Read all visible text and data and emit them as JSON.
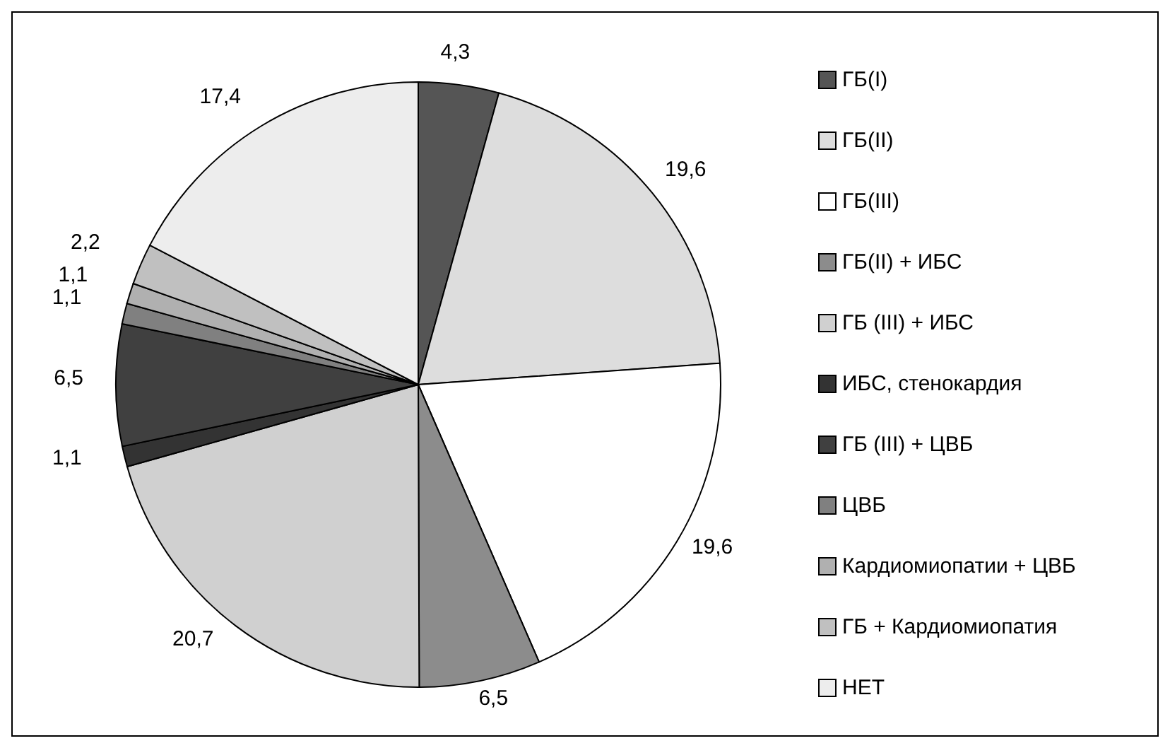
{
  "chart_data": {
    "type": "pie",
    "categories": [
      "ГБ(I)",
      "ГБ(II)",
      "ГБ(III)",
      "ГБ(II) + ИБС",
      "ГБ (III) + ИБС",
      "ИБС, стенокардия",
      "ГБ (III) + ЦВБ",
      "ЦВБ",
      "Кардиомиопатии + ЦВБ",
      "ГБ + Кардиомиопатия",
      "НЕТ"
    ],
    "values": [
      4.3,
      19.6,
      19.6,
      6.5,
      20.7,
      1.1,
      6.5,
      1.1,
      1.1,
      2.2,
      17.4
    ],
    "value_labels": [
      "4,3",
      "19,6",
      "19,6",
      "6,5",
      "20,7",
      "1,1",
      "6,5",
      "1,1",
      "1,1",
      "2,2",
      "17,4"
    ],
    "colors": [
      "#555555",
      "#dddddd",
      "#ffffff",
      "#8c8c8c",
      "#d0d0d0",
      "#333333",
      "#404040",
      "#808080",
      "#b0b0b0",
      "#c0c0c0",
      "#ededed"
    ],
    "legend": "right"
  }
}
